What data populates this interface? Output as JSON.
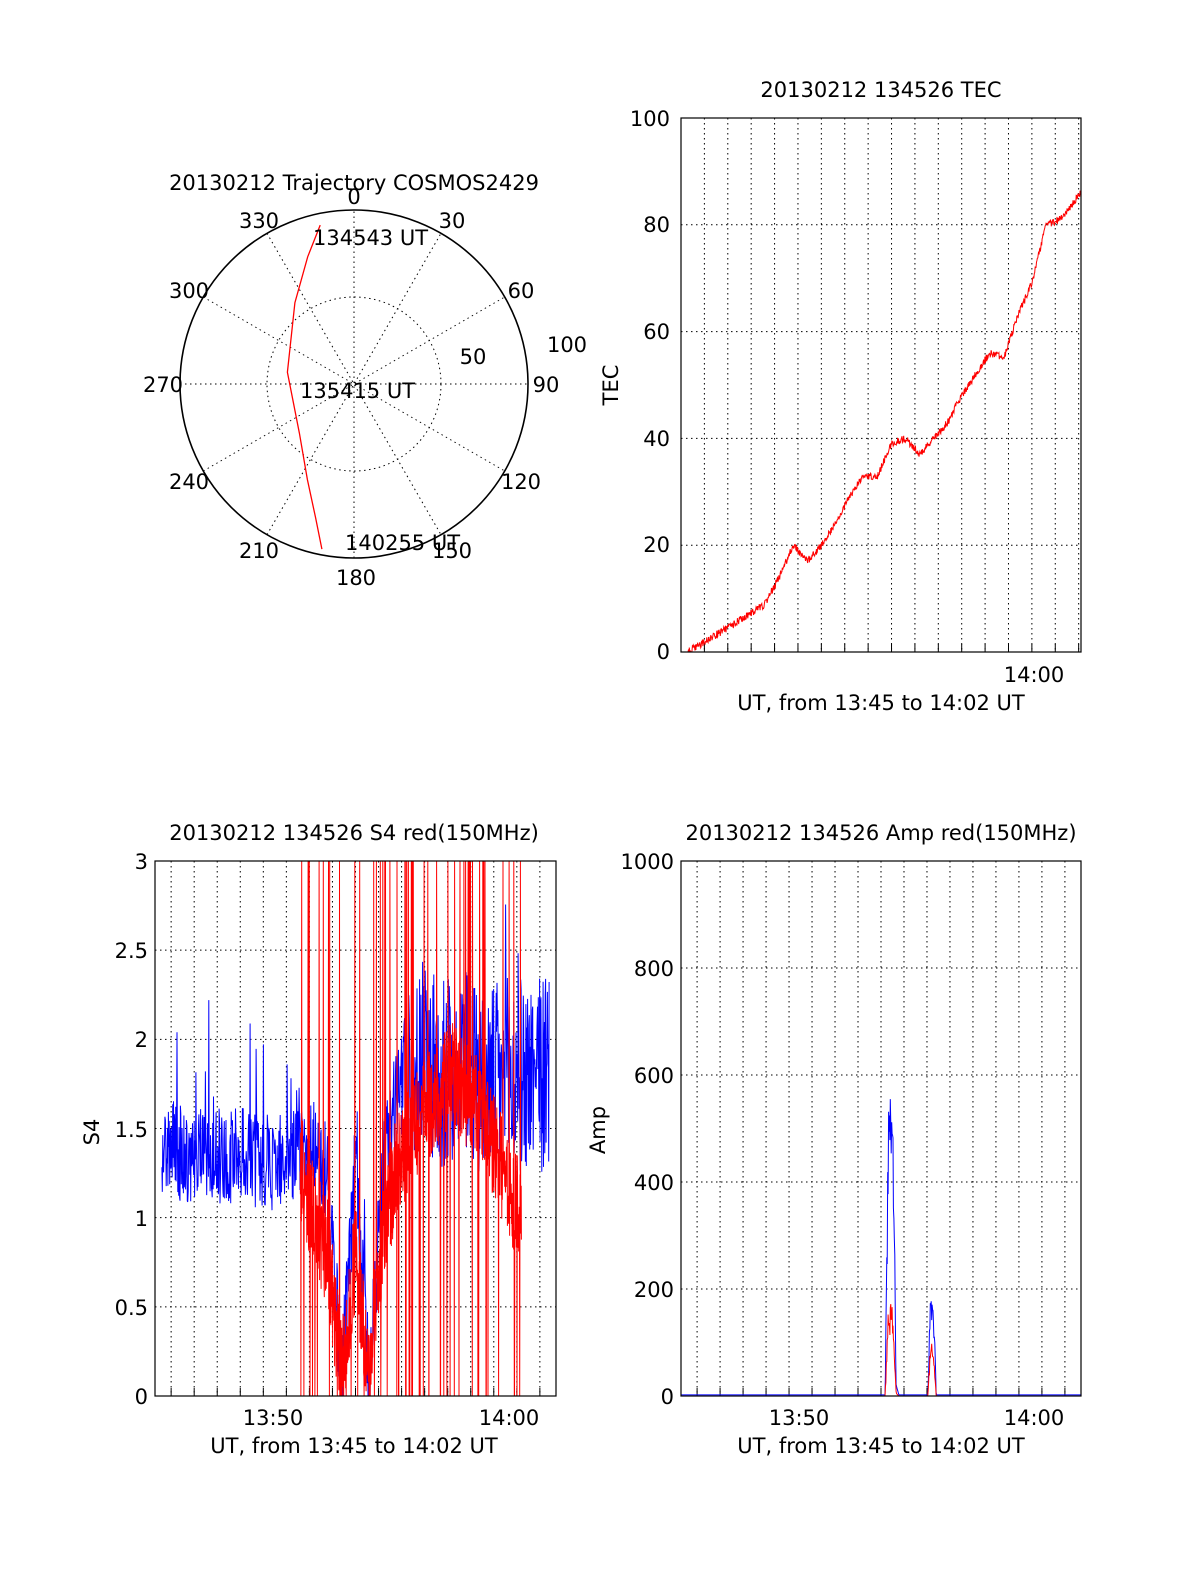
{
  "chart_data": [
    {
      "type": "polar",
      "title": "20130212 Trajectory COSMOS2429",
      "angle_labels": [
        "0",
        "30",
        "60",
        "90",
        "120",
        "150",
        "180",
        "210",
        "240",
        "270",
        "300",
        "330"
      ],
      "radius_labels": [
        "50",
        "100"
      ],
      "annotations": [
        "134543 UT",
        "135415 UT",
        "140255 UT"
      ],
      "track_color": "#ff0000",
      "track": [
        {
          "az": 348,
          "el": 6
        },
        {
          "az": 340,
          "el": 20
        },
        {
          "az": 324,
          "el": 38
        },
        {
          "az": 280,
          "el": 55
        },
        {
          "az": 228,
          "el": 52
        },
        {
          "az": 206,
          "el": 35
        },
        {
          "az": 196,
          "el": 18
        },
        {
          "az": 191,
          "el": 3
        }
      ]
    },
    {
      "type": "line",
      "title": "20130212 134526 TEC",
      "xlabel": "UT, from 13:45 to 14:02 UT",
      "ylabel": "TEC",
      "xlim": [
        13.75,
        14.035
      ],
      "ylim": [
        0,
        100
      ],
      "yticks": [
        "0",
        "20",
        "40",
        "60",
        "80",
        "100"
      ],
      "xticks": [
        {
          "v": 14.0,
          "label": "14:00"
        }
      ],
      "xgrid_step_minutes": 1,
      "grid": true,
      "series": [
        {
          "color": "#ff0000",
          "x": [
            13.755,
            13.78,
            13.81,
            13.82,
            13.83,
            13.84,
            13.85,
            13.86,
            13.87,
            13.88,
            13.89,
            13.9,
            13.91,
            13.92,
            13.93,
            13.94,
            13.95,
            13.96,
            13.97,
            13.98,
            13.99,
            14.0,
            14.01,
            14.02,
            14.035
          ],
          "y": [
            0,
            4,
            9,
            14,
            20,
            17,
            20,
            24,
            29,
            33,
            33,
            39,
            40,
            37,
            40,
            43,
            48,
            52,
            56,
            55,
            63,
            69,
            80,
            81,
            86
          ]
        }
      ]
    },
    {
      "type": "line",
      "title": "20130212 134526 S4 red(150MHz)",
      "xlabel": "UT, from 13:45 to 14:02 UT",
      "ylabel": "S4",
      "xlim": [
        13.755,
        14.045
      ],
      "ylim": [
        0,
        3
      ],
      "yticks": [
        "0",
        "0.5",
        "1",
        "1.5",
        "2",
        "2.5",
        "3"
      ],
      "xticks": [
        {
          "v": 13.8333,
          "label": "13:50"
        },
        {
          "v": 14.0,
          "label": "14:00"
        }
      ],
      "xgrid_step_minutes": 1,
      "grid": true,
      "series": [
        {
          "color": "#0000ff",
          "x": [
            13.76,
            13.78,
            13.8,
            13.82,
            13.84,
            13.86,
            13.87,
            13.88,
            13.89,
            13.9,
            13.91,
            13.92,
            13.93,
            13.94,
            13.95,
            13.96,
            13.97,
            13.98,
            13.99,
            14.0,
            14.02,
            14.04
          ],
          "y": [
            1.4,
            1.35,
            1.35,
            1.35,
            1.3,
            1.35,
            1.45,
            1.2,
            0.1,
            1.3,
            0.1,
            1.3,
            1.7,
            1.8,
            1.9,
            1.8,
            1.85,
            1.9,
            1.8,
            1.75,
            1.8,
            1.8
          ]
        },
        {
          "color": "#ff0000",
          "x": [
            13.86,
            13.87,
            13.88,
            13.89,
            13.9,
            13.91,
            13.92,
            13.93,
            13.95,
            13.97,
            13.99,
            14.01,
            14.02
          ],
          "y": [
            1.3,
            1.0,
            0.8,
            0.1,
            0.8,
            0.1,
            0.9,
            1.3,
            1.6,
            1.8,
            1.6,
            1.2,
            1.0
          ]
        }
      ]
    },
    {
      "type": "line",
      "title": "20130212 134526 Amp red(150MHz)",
      "xlabel": "UT, from 13:45 to 14:02 UT",
      "ylabel": "Amp",
      "xlim": [
        13.755,
        14.045
      ],
      "ylim": [
        0,
        1000
      ],
      "yticks": [
        "0",
        "200",
        "400",
        "600",
        "800",
        "1000"
      ],
      "xticks": [
        {
          "v": 13.8333,
          "label": "13:50"
        },
        {
          "v": 14.0,
          "label": "14:00"
        }
      ],
      "xgrid_step_minutes": 1,
      "grid": true,
      "series": [
        {
          "color": "#0000ff",
          "x": [
            13.755,
            13.903,
            13.905,
            13.907,
            13.909,
            13.911,
            13.913,
            13.934,
            13.936,
            13.938,
            13.94,
            14.045
          ],
          "y": [
            2,
            2,
            520,
            640,
            560,
            20,
            2,
            2,
            230,
            210,
            2,
            2
          ]
        },
        {
          "color": "#ff0000",
          "x": [
            13.755,
            13.903,
            13.905,
            13.907,
            13.909,
            13.911,
            13.913,
            13.934,
            13.936,
            13.938,
            13.94,
            14.045
          ],
          "y": [
            0,
            0,
            150,
            190,
            160,
            5,
            0,
            0,
            110,
            90,
            0,
            0
          ]
        }
      ]
    }
  ]
}
